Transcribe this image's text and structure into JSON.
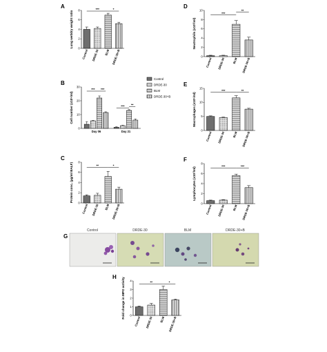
{
  "colors": {
    "axis": "#000000",
    "control": "#6e6e6e",
    "drde": "#d8d8d8",
    "blm": "#ffffff",
    "combo": "#ffffff"
  },
  "chart_data": [
    {
      "id": "A",
      "type": "bar",
      "letter": "A",
      "ylabel": "Lung wet/dry weight ratio",
      "categories": [
        "Control",
        "DRDE-30",
        "BLM",
        "DRDE-30+B"
      ],
      "values": [
        4.0,
        4.2,
        7.0,
        5.2
      ],
      "errors": [
        0.5,
        0.3,
        0.4,
        0.3
      ],
      "ylim": [
        0,
        8
      ],
      "yticks": [
        0,
        2,
        4,
        6,
        8
      ],
      "sig": [
        {
          "from": 0,
          "to": 2,
          "y": 7.85,
          "label": "***"
        },
        {
          "from": 2,
          "to": 3,
          "y": 7.85,
          "label": "*"
        }
      ]
    },
    {
      "id": "D",
      "type": "bar",
      "letter": "D",
      "ylabel": "Neutrophils (x10³/ml)",
      "categories": [
        "Control",
        "DRDE-30",
        "BLM",
        "DRDE-30+B"
      ],
      "values": [
        0.2,
        0.2,
        7.0,
        3.6
      ],
      "errors": [
        0.1,
        0.1,
        0.8,
        0.6
      ],
      "ylim": [
        0,
        10
      ],
      "yticks": [
        0,
        2,
        4,
        6,
        8,
        10
      ],
      "sig": [
        {
          "from": 0,
          "to": 2,
          "y": 9.0,
          "label": "***"
        },
        {
          "from": 2,
          "to": 3,
          "y": 9.6,
          "label": "**"
        }
      ]
    },
    {
      "id": "B",
      "type": "bar",
      "letter": "B",
      "grouped": true,
      "ylabel": "Cell number (x10⁵/ml)",
      "groups": [
        "Day 06",
        "Day 21"
      ],
      "series": [
        {
          "name": "Control",
          "values": [
            3.0,
            0.8
          ],
          "errors": [
            1.8,
            0.3
          ]
        },
        {
          "name": "DRDE-30",
          "values": [
            5.5,
            2.0
          ],
          "errors": [
            0.3,
            0.3
          ]
        },
        {
          "name": "BLM",
          "values": [
            22.0,
            13.0
          ],
          "errors": [
            1.5,
            0.6
          ]
        },
        {
          "name": "DRDE-30+B",
          "values": [
            11.5,
            6.0
          ],
          "errors": [
            0.5,
            0.8
          ]
        }
      ],
      "ylim": [
        0,
        30
      ],
      "yticks": [
        0,
        10,
        20,
        30
      ],
      "sig": [
        {
          "g": 0,
          "from": 0,
          "to": 2,
          "y": 27.0,
          "label": "***"
        },
        {
          "g": 0,
          "from": 2,
          "to": 3,
          "y": 27.0,
          "label": "***"
        },
        {
          "g": 1,
          "from": 0,
          "to": 2,
          "y": 14.8,
          "label": "***"
        },
        {
          "g": 1,
          "from": 2,
          "to": 3,
          "y": 15.8,
          "label": "**"
        }
      ]
    },
    {
      "id": "E",
      "type": "bar",
      "letter": "E",
      "ylabel": "Macrophages (x10⁵/ml)",
      "categories": [
        "Control",
        "DRDE-30",
        "BLM",
        "DRDE-30+B"
      ],
      "values": [
        5.0,
        4.6,
        11.6,
        7.6
      ],
      "errors": [
        0.2,
        0.2,
        0.8,
        0.3
      ],
      "ylim": [
        0,
        15
      ],
      "yticks": [
        0,
        5,
        10,
        15
      ],
      "sig": [
        {
          "from": 0,
          "to": 2,
          "y": 13.6,
          "label": "***"
        },
        {
          "from": 2,
          "to": 3,
          "y": 13.6,
          "label": "**"
        }
      ]
    },
    {
      "id": "C",
      "type": "bar",
      "letter": "C",
      "ylabel": "Protein conc. (µg/ml BALF)",
      "categories": [
        "Control",
        "DRDE-30",
        "BLM",
        "DRDE-30+B"
      ],
      "values": [
        1.4,
        1.5,
        5.2,
        2.7
      ],
      "errors": [
        0.2,
        0.4,
        1.0,
        0.4
      ],
      "ylim": [
        0,
        8
      ],
      "yticks": [
        0,
        2,
        4,
        6,
        8
      ],
      "sig": [
        {
          "from": 0,
          "to": 2,
          "y": 7.0,
          "label": "**"
        },
        {
          "from": 2,
          "to": 3,
          "y": 7.0,
          "label": "*"
        }
      ]
    },
    {
      "id": "F",
      "type": "bar",
      "letter": "F",
      "ylabel": "Lymphocytes (x10³/ml)",
      "categories": [
        "Control",
        "DRDE-30",
        "BLM",
        "DRDE-30+B"
      ],
      "values": [
        0.6,
        0.7,
        5.6,
        3.2
      ],
      "errors": [
        0.1,
        0.1,
        0.3,
        0.4
      ],
      "ylim": [
        0,
        8
      ],
      "yticks": [
        0,
        2,
        4,
        6,
        8
      ],
      "sig": [
        {
          "from": 0,
          "to": 2,
          "y": 7.1,
          "label": "***"
        },
        {
          "from": 2,
          "to": 3,
          "y": 7.1,
          "label": "***"
        }
      ]
    },
    {
      "id": "H",
      "type": "bar",
      "letter": "H",
      "ylabel": "Fold change in MPO activity",
      "categories": [
        "Control",
        "DRDE-30",
        "BLM",
        "DRDE-30+B"
      ],
      "values": [
        1.0,
        1.2,
        3.0,
        1.8
      ],
      "errors": [
        0.1,
        0.2,
        0.4,
        0.1
      ],
      "ylim": [
        0,
        4
      ],
      "yticks": [
        0,
        1,
        2,
        3,
        4
      ],
      "sig": [
        {
          "from": 0,
          "to": 2,
          "y": 3.65,
          "label": "**"
        },
        {
          "from": 2,
          "to": 3,
          "y": 3.65,
          "label": "*"
        }
      ]
    }
  ],
  "legend": [
    "Control",
    "DRDE-30",
    "BLM",
    "DRDE-30+B"
  ],
  "micrographs": {
    "letter": "G",
    "labels": [
      "Control",
      "DRDE-30",
      "BLM",
      "DRDE-30+B"
    ]
  }
}
